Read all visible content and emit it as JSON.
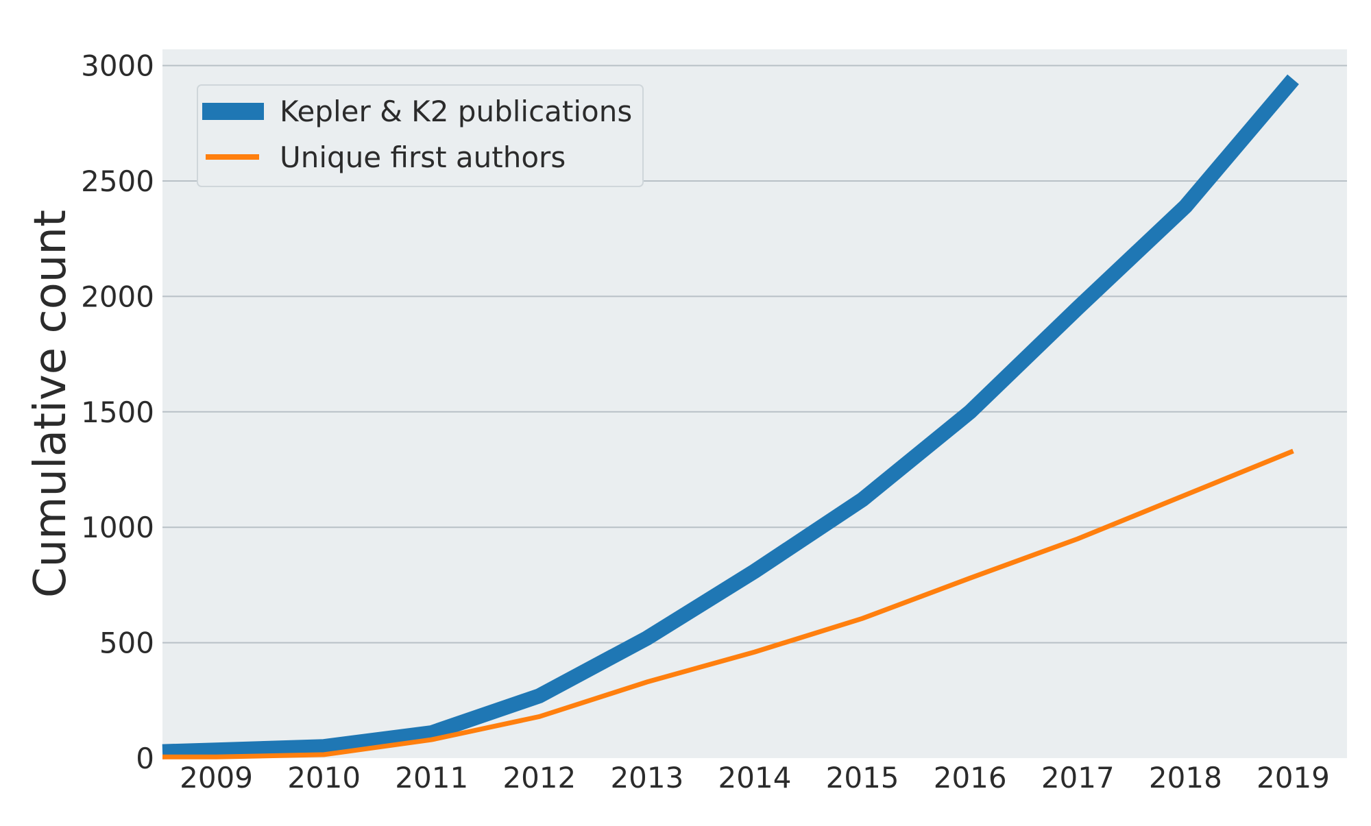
{
  "chart_data": {
    "type": "line",
    "title": "",
    "xlabel": "",
    "ylabel": "Cumulative count",
    "x": [
      2009,
      2010,
      2011,
      2012,
      2013,
      2014,
      2015,
      2016,
      2017,
      2018,
      2019
    ],
    "xlim": [
      2008.5,
      2019.5
    ],
    "ylim": [
      0,
      3070
    ],
    "yticks": [
      0,
      500,
      1000,
      1500,
      2000,
      2500,
      3000
    ],
    "grid": "y",
    "legend_position": "top-left",
    "background": "#eaeef0",
    "series": [
      {
        "name": "Kepler & K2 publications",
        "color": "#1f77b4",
        "values": [
          28,
          35,
          50,
          110,
          270,
          520,
          810,
          1120,
          1500,
          1950,
          2390,
          2940
        ],
        "x_values": [
          2008.5,
          2009,
          2010,
          2011,
          2012,
          2013,
          2014,
          2015,
          2016,
          2017,
          2018,
          2019
        ],
        "linewidth": "thick"
      },
      {
        "name": "Unique first authors",
        "color": "#ff7f0e",
        "values": [
          5,
          5,
          15,
          80,
          180,
          330,
          460,
          605,
          780,
          950,
          1140,
          1330
        ],
        "x_values": [
          2008.5,
          2009,
          2010,
          2011,
          2012,
          2013,
          2014,
          2015,
          2016,
          2017,
          2018,
          2019
        ],
        "linewidth": "thin"
      }
    ]
  }
}
